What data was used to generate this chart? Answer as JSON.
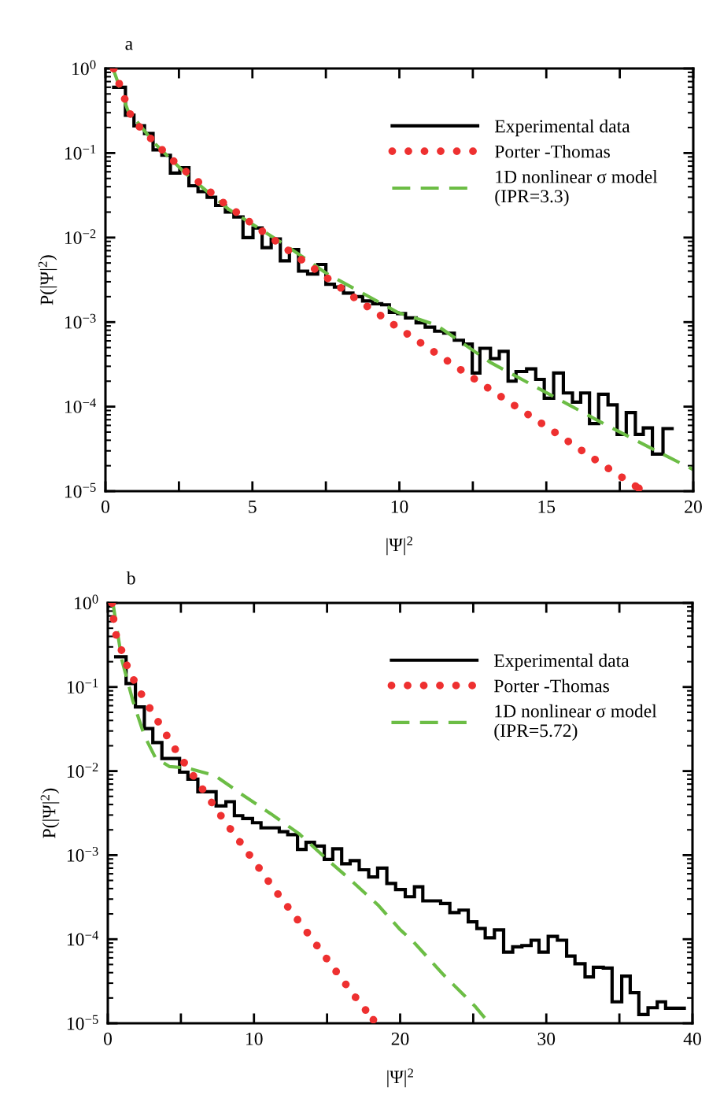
{
  "chart_data": [
    {
      "type": "line",
      "title": "a",
      "xlabel": "|Ψ|$^{2}$",
      "ylabel": "P(|Ψ|$^{2}$)",
      "log": "y",
      "grid": false,
      "legend": "top right",
      "xlim": [
        0,
        20
      ],
      "ylim": [
        1e-05,
        1
      ],
      "xticks": [
        0,
        {
          "value": 2.5,
          "label": null
        },
        5,
        {
          "value": 7.5,
          "label": null
        },
        10,
        {
          "value": 12.5,
          "label": null
        },
        15,
        {
          "value": 17.5,
          "label": null
        },
        20
      ],
      "yticks": [
        {
          "value": 1e-05,
          "label": "10$^{−5}$"
        },
        {
          "value": 0.0001,
          "label": "10$^{−4}$"
        },
        {
          "value": 0.001,
          "label": "10$^{−3}$"
        },
        {
          "value": 0.01,
          "label": "10$^{−2}$"
        },
        {
          "value": 0.1,
          "label": "10$^{−1}$"
        },
        {
          "value": 1,
          "label": "10$^{0}$"
        }
      ],
      "series": [
        {
          "name": "Experimental data",
          "type": "step",
          "color": "#000000",
          "line_style": "solid",
          "x": [
            0.28,
            0.68,
            0.97,
            1.33,
            1.62,
            1.92,
            2.21,
            2.53,
            2.84,
            3.15,
            3.46,
            3.75,
            4.08,
            4.37,
            4.68,
            5.02,
            5.33,
            5.64,
            5.95,
            6.26,
            6.57,
            6.88,
            7.22,
            7.5,
            7.79,
            8.1,
            8.42,
            8.75,
            9.09,
            9.4,
            9.66,
            9.94,
            10.21,
            10.57,
            10.88,
            11.2,
            11.51,
            11.87,
            12.18,
            12.48,
            12.74,
            13.1,
            13.4,
            13.7,
            13.97,
            14.33,
            14.64,
            14.93,
            15.25,
            15.58,
            15.89,
            16.17,
            16.47,
            16.78,
            17.1,
            17.41,
            17.72,
            18.03,
            18.3,
            18.61,
            18.97,
            19.28
          ],
          "values": [
            0.6,
            0.28,
            0.21,
            0.17,
            0.109,
            0.094,
            0.058,
            0.067,
            0.041,
            0.035,
            0.03,
            0.024,
            0.02,
            0.0175,
            0.01,
            0.013,
            0.0076,
            0.0096,
            0.0053,
            0.0072,
            0.004,
            0.0037,
            0.0048,
            0.0028,
            0.0026,
            0.0022,
            0.002,
            0.00178,
            0.00165,
            0.0016,
            0.0013,
            0.00126,
            0.00112,
            0.00098,
            0.00087,
            0.00078,
            0.00074,
            0.00061,
            0.00055,
            0.00025,
            0.00049,
            0.00037,
            0.00045,
            0.0002,
            0.00026,
            0.00028,
            0.00021,
            0.000126,
            0.00025,
            0.000145,
            0.000113,
            0.000145,
            6.3e-05,
            0.00014,
            0.000105,
            4.7e-05,
            8.5e-05,
            4.7e-05,
            5.6e-05,
            2.75e-05,
            5.5e-05,
            5.5e-05
          ]
        },
        {
          "name": "Porter -Thomas",
          "type": "line",
          "color": "#ee3030",
          "line_style": "dotted",
          "x": [
            0.28,
            0.91,
            1.63,
            2.39,
            3.15,
            3.91,
            5.06,
            6.21,
            7.36,
            8.51,
            9.28,
            10.02,
            11.24,
            13.17,
            15.07,
            16.97,
            18.15
          ],
          "values": [
            1.0,
            0.25,
            0.138,
            0.076,
            0.046,
            0.0275,
            0.014,
            0.0071,
            0.0037,
            0.0019,
            0.00125,
            0.00083,
            0.00043,
            0.000153,
            5.6e-05,
            2e-05,
            1.08e-05
          ]
        },
        {
          "name": "1D nonlinear σ model\n(IPR=3.3)",
          "type": "line",
          "color": "#6cbd45",
          "line_style": "dashed",
          "x": [
            0.28,
            0.76,
            1.71,
            2.76,
            4.2,
            6.02,
            7.56,
            9.95,
            11.24,
            13.12,
            15.09,
            17.06,
            19.09,
            20.0
          ],
          "values": [
            0.95,
            0.32,
            0.126,
            0.056,
            0.0215,
            0.0086,
            0.0037,
            0.0013,
            0.00093,
            0.00033,
            0.000141,
            6e-05,
            2.6e-05,
            1.8e-05
          ]
        }
      ]
    },
    {
      "type": "line",
      "title": "b",
      "xlabel": "|Ψ|$^{2}$",
      "ylabel": "P(|Ψ|$^{2}$)",
      "log": "y",
      "grid": false,
      "legend": "top right",
      "xlim": [
        0,
        40
      ],
      "ylim": [
        1e-05,
        1
      ],
      "xticks": [
        0,
        {
          "value": 5,
          "label": null
        },
        10,
        {
          "value": 15,
          "label": null
        },
        20,
        {
          "value": 25,
          "label": null
        },
        30,
        {
          "value": 35,
          "label": null
        },
        40
      ],
      "yticks": [
        {
          "value": 1e-05,
          "label": "10$^{−5}$"
        },
        {
          "value": 0.0001,
          "label": "10$^{−4}$"
        },
        {
          "value": 0.001,
          "label": "10$^{−3}$"
        },
        {
          "value": 0.01,
          "label": "10$^{−2}$"
        },
        {
          "value": 0.1,
          "label": "10$^{−1}$"
        },
        {
          "value": 1,
          "label": "10$^{0}$"
        }
      ],
      "series": [
        {
          "name": "Experimental data",
          "type": "step",
          "color": "#000000",
          "line_style": "solid",
          "x": [
            0.54,
            1.25,
            1.89,
            2.5,
            3.08,
            3.7,
            4.91,
            5.48,
            6.16,
            7.41,
            8.08,
            8.66,
            9.23,
            9.9,
            10.48,
            11.73,
            12.31,
            12.98,
            13.56,
            14.14,
            14.81,
            15.39,
            16.0,
            16.58,
            17.2,
            17.85,
            18.46,
            19.09,
            19.69,
            20.35,
            20.98,
            21.55,
            22.77,
            23.4,
            24.03,
            24.66,
            25.25,
            25.82,
            26.45,
            27.08,
            27.7,
            28.33,
            28.96,
            29.5,
            30.13,
            30.76,
            31.39,
            31.96,
            32.65,
            33.22,
            33.9,
            34.5,
            35.16,
            35.74,
            36.33,
            36.96,
            37.59,
            38.16,
            39.44
          ],
          "values": [
            0.229,
            0.11,
            0.058,
            0.032,
            0.0218,
            0.0141,
            0.0097,
            0.008,
            0.00567,
            0.00385,
            0.00432,
            0.00295,
            0.00273,
            0.00243,
            0.00211,
            0.0019,
            0.00175,
            0.00117,
            0.00142,
            0.00128,
            0.00089,
            0.00119,
            0.00079,
            0.00086,
            0.00067,
            0.00055,
            0.0007,
            0.00046,
            0.00039,
            0.00032,
            0.00042,
            0.000286,
            0.000266,
            0.000207,
            0.000222,
            0.000161,
            0.000134,
            0.000104,
            0.000129,
            7.03e-05,
            8.13e-05,
            8.41e-05,
            9.72e-05,
            7.03e-05,
            0.000108,
            9.72e-05,
            6.3e-05,
            5.1e-05,
            3.56e-05,
            4.64e-05,
            4.53e-05,
            1.8e-05,
            3.63e-05,
            2.31e-05,
            1.27e-05,
            1.53e-05,
            1.8e-05,
            1.51e-05,
            1.51e-05
          ]
        },
        {
          "name": "Porter -Thomas",
          "type": "line",
          "color": "#ee3030",
          "line_style": "dotted",
          "x": [
            0.29,
            0.48,
            1.31,
            2.02,
            2.93,
            3.89,
            4.81,
            5.87,
            6.93,
            8.02,
            9.14,
            10.23,
            11.35,
            12.5,
            13.66,
            14.81,
            15.93,
            17.08,
            18.17
          ],
          "values": [
            1.0,
            0.46,
            0.18,
            0.099,
            0.054,
            0.029,
            0.016,
            0.0087,
            0.0047,
            0.0025,
            0.00136,
            0.00075,
            0.0004,
            0.00022,
            0.000119,
            6.4e-05,
            3.5e-05,
            1.9e-05,
            1.1e-05
          ]
        },
        {
          "name": "1D nonlinear σ model\n(IPR=5.72)",
          "type": "line",
          "color": "#6cbd45",
          "line_style": "dashed",
          "x": [
            0.35,
            0.96,
            1.73,
            2.5,
            3.27,
            4.23,
            5.39,
            7.31,
            9.23,
            11.16,
            13.08,
            15.0,
            16.54,
            18.47,
            20.0,
            20.89,
            22.95,
            25.1,
            26.1
          ],
          "values": [
            1.0,
            0.21,
            0.067,
            0.0264,
            0.0143,
            0.0113,
            0.0109,
            0.0089,
            0.0052,
            0.0031,
            0.0018,
            0.00089,
            0.00052,
            0.000257,
            0.00013,
            9.4e-05,
            3.8e-05,
            1.61e-05,
            1e-05
          ]
        }
      ]
    }
  ]
}
